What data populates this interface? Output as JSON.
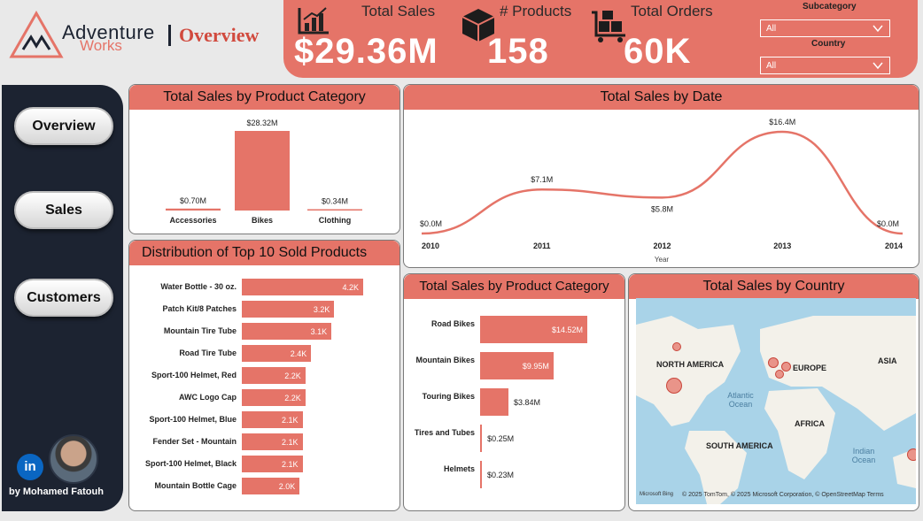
{
  "brand": {
    "name_top": "Adventure",
    "name_bottom": "Works",
    "page_title": "Overview",
    "colors": {
      "accent": "#e57468",
      "sidebar": "#1c2331",
      "accent_dark": "#c9463b"
    }
  },
  "kpis": [
    {
      "label": "Total Sales",
      "value": "$29.36M",
      "icon": "chart-icon"
    },
    {
      "label": "# Products",
      "value": "158",
      "icon": "box-icon"
    },
    {
      "label": "Total Orders",
      "value": "60K",
      "icon": "cart-icon"
    }
  ],
  "filters": {
    "subcategory": {
      "label": "Subcategory",
      "value": "All"
    },
    "country": {
      "label": "Country",
      "value": "All"
    }
  },
  "nav": {
    "items": [
      {
        "label": "Overview"
      },
      {
        "label": "Sales"
      },
      {
        "label": "Customers"
      }
    ],
    "author": "by Mohamed Fatouh",
    "linkedin": "in"
  },
  "panels": {
    "category": {
      "title": "Total Sales by Product Category"
    },
    "date": {
      "title": "Total Sales by Date"
    },
    "top10": {
      "title": "Distribution of Top 10 Sold Products"
    },
    "subcategory": {
      "title": "Total Sales by Product Category"
    },
    "country": {
      "title": "Total Sales by Country"
    }
  },
  "chart_data": [
    {
      "type": "bar",
      "title": "Total Sales by Product Category",
      "categories": [
        "Accessories",
        "Bikes",
        "Clothing"
      ],
      "values": [
        0.7,
        28.32,
        0.34
      ],
      "labels": [
        "$0.70M",
        "$28.32M",
        "$0.34M"
      ]
    },
    {
      "type": "line",
      "title": "Total Sales by Date",
      "x": [
        "2010",
        "2011",
        "2012",
        "2013",
        "2014"
      ],
      "values": [
        0.0,
        7.1,
        5.8,
        16.4,
        0.0
      ],
      "labels": [
        "$0.0M",
        "$7.1M",
        "$5.8M",
        "$16.4M",
        "$0.0M"
      ],
      "xlabel": "Year",
      "ylim": [
        0,
        16.4
      ]
    },
    {
      "type": "bar",
      "orientation": "horizontal",
      "title": "Distribution of Top 10 Sold Products",
      "categories": [
        "Water Bottle - 30 oz.",
        "Patch Kit/8 Patches",
        "Mountain Tire Tube",
        "Road Tire Tube",
        "Sport-100 Helmet, Red",
        "AWC Logo Cap",
        "Sport-100 Helmet, Blue",
        "Fender Set - Mountain",
        "Sport-100 Helmet, Black",
        "Mountain Bottle Cage"
      ],
      "values": [
        4.2,
        3.2,
        3.1,
        2.4,
        2.2,
        2.2,
        2.1,
        2.1,
        2.1,
        2.0
      ],
      "labels": [
        "4.2K",
        "3.2K",
        "3.1K",
        "2.4K",
        "2.2K",
        "2.2K",
        "2.1K",
        "2.1K",
        "2.1K",
        "2.0K"
      ]
    },
    {
      "type": "bar",
      "orientation": "horizontal",
      "title": "Total Sales by Product Category",
      "categories": [
        "Road Bikes",
        "Mountain Bikes",
        "Touring Bikes",
        "Tires and Tubes",
        "Helmets"
      ],
      "values": [
        14.52,
        9.95,
        3.84,
        0.25,
        0.23
      ],
      "labels": [
        "$14.52M",
        "$9.95M",
        "$3.84M",
        "$0.25M",
        "$0.23M"
      ]
    }
  ],
  "map": {
    "labels": [
      "NORTH AMERICA",
      "EUROPE",
      "ASIA",
      "AFRICA",
      "SOUTH AMERICA",
      "Atlantic Ocean",
      "Indian Ocean"
    ],
    "attribution": "© 2025 TomTom, © 2025 Microsoft Corporation, © OpenStreetMap  Terms",
    "bing": "Microsoft Bing"
  }
}
